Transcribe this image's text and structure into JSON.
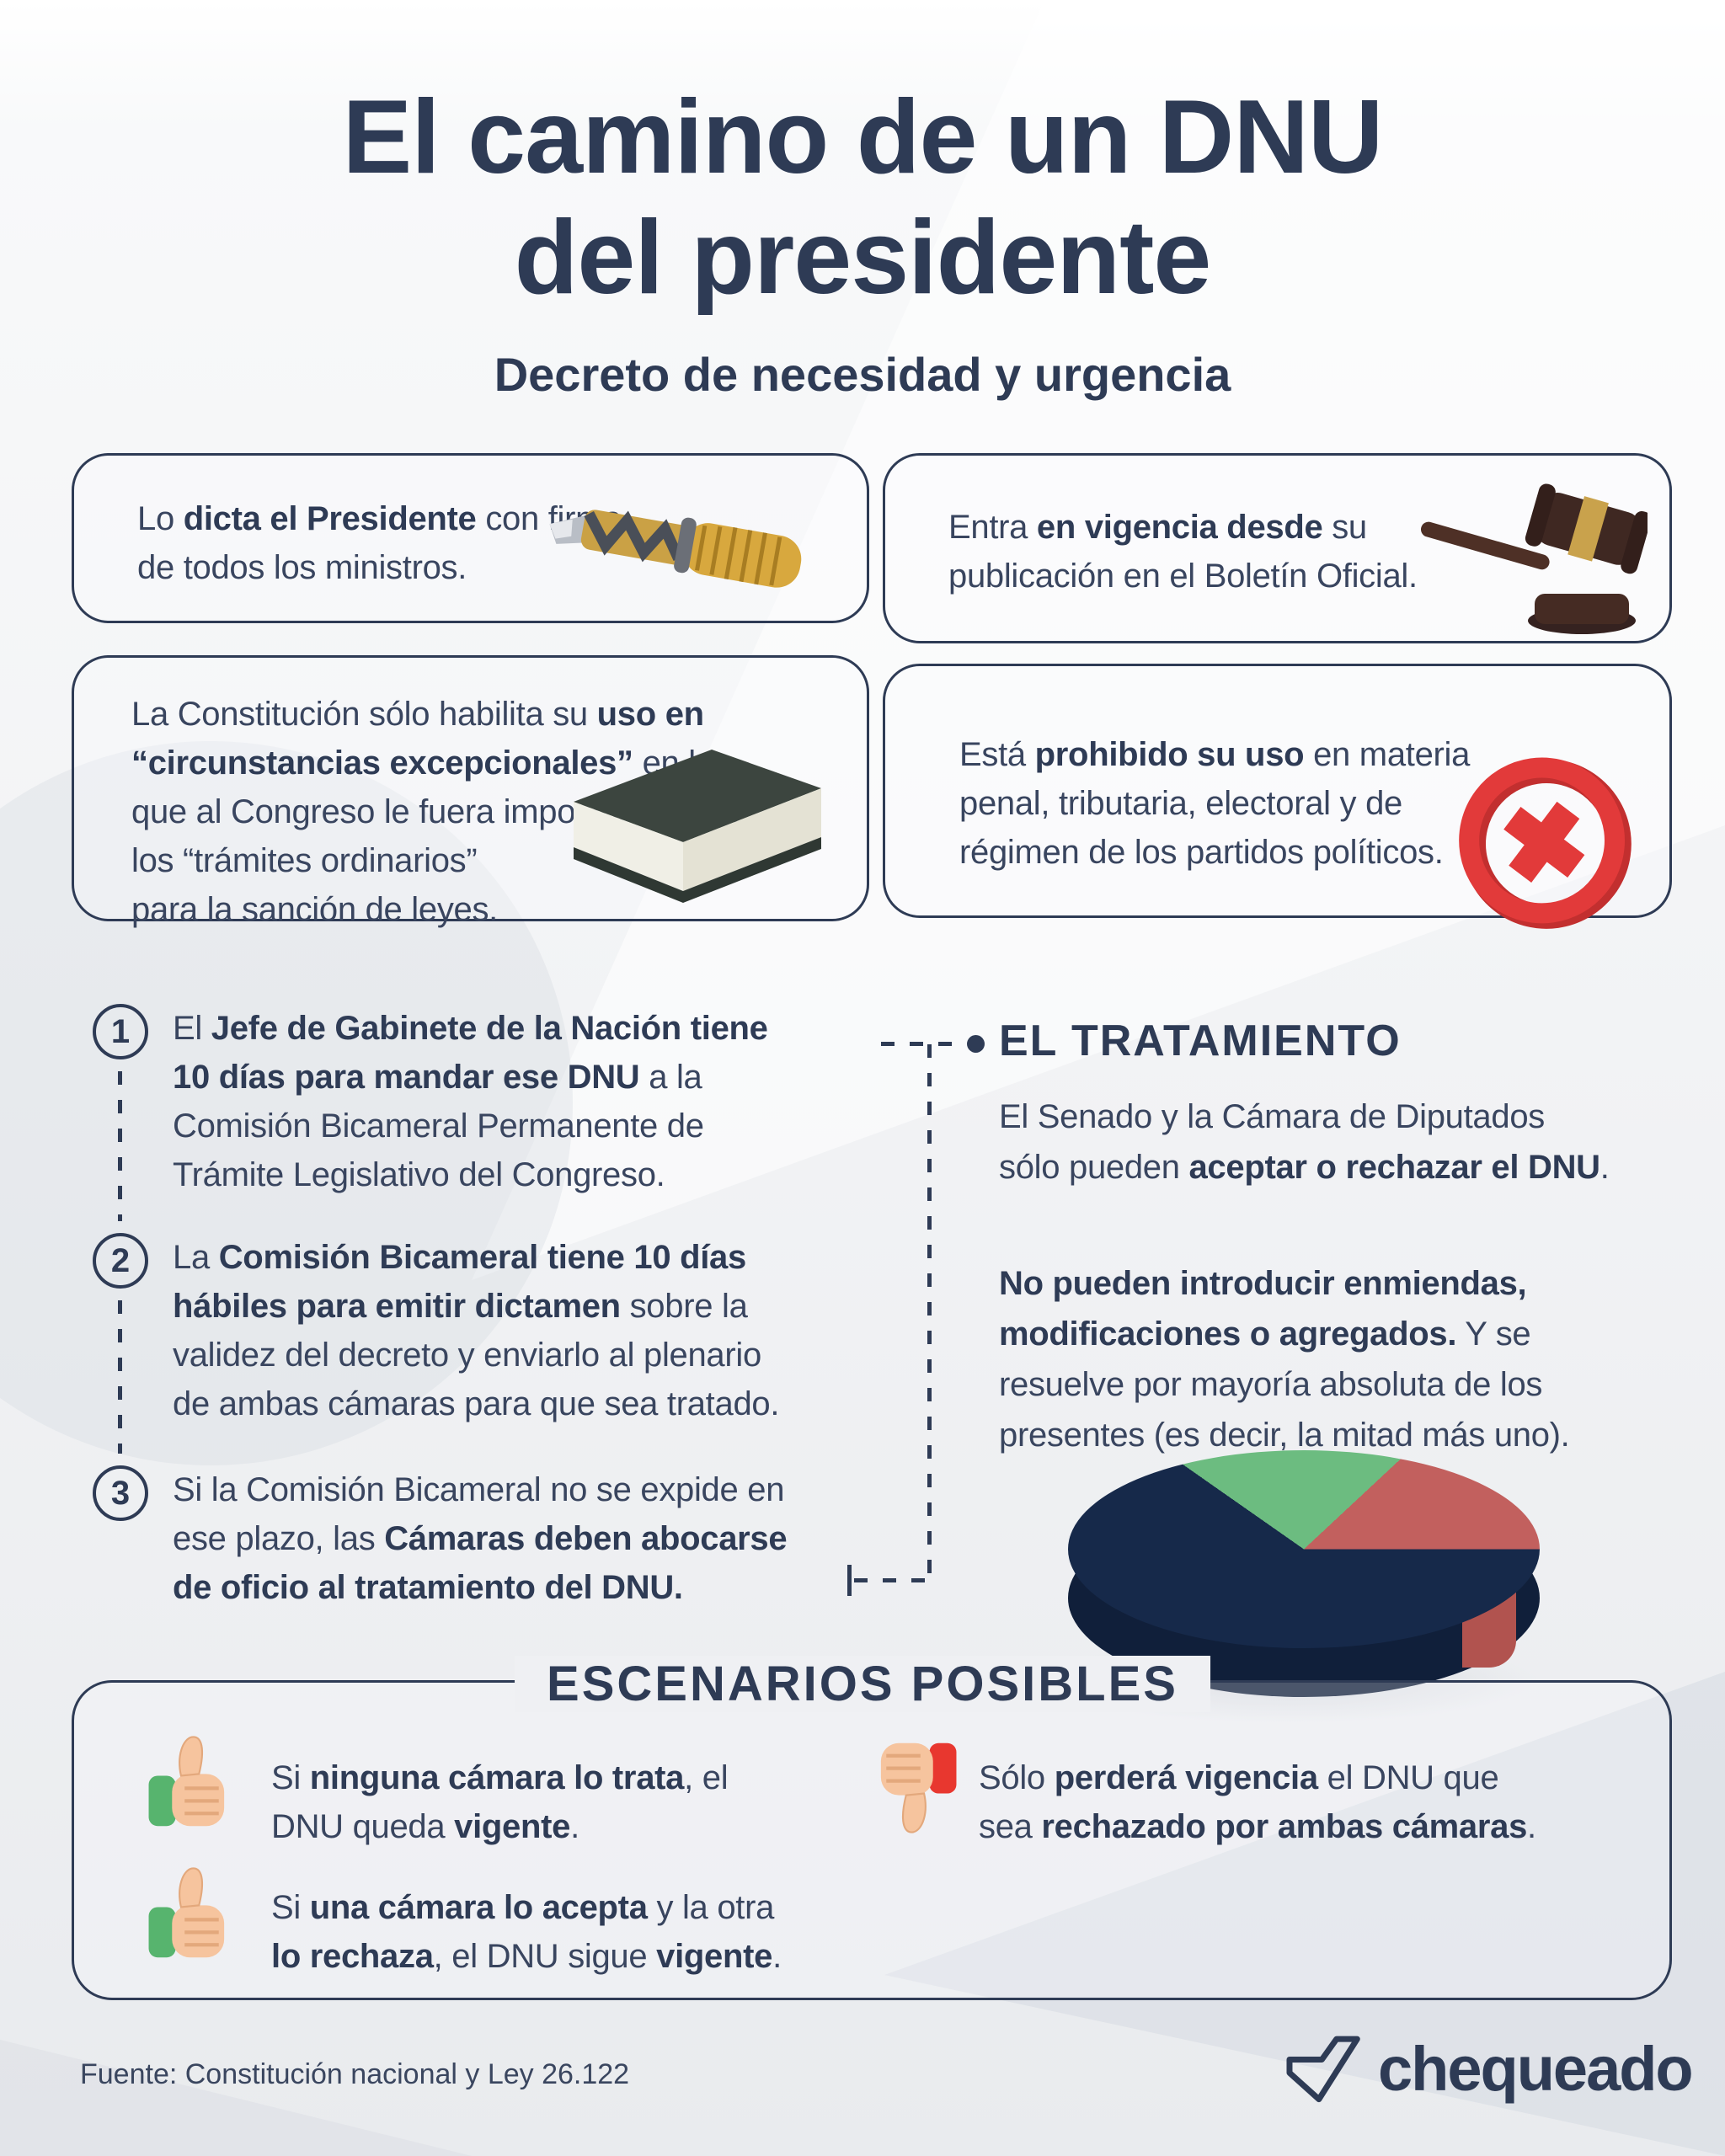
{
  "title": {
    "line1": "El camino de un DNU",
    "line2": "del presidente"
  },
  "subtitle": "Decreto de necesidad y urgencia",
  "colors": {
    "navy": "#2e3b55",
    "body_text": "#39455f",
    "red": "#e23a3a",
    "green_thumb": "#57b46e",
    "red_thumb": "#e8372f",
    "skin": "#f6c49e",
    "pie_navy": "#16294a",
    "pie_green": "#6cbc80",
    "pie_red": "#c2605e",
    "gold": "#caa145",
    "gavel_brown": "#452b23",
    "background": "#f2f3f5"
  },
  "info_boxes": [
    {
      "icon": "pen-image",
      "segments": [
        {
          "t": "Lo "
        },
        {
          "t": "dicta el Presidente",
          "b": true
        },
        {
          "t": " con firma\nde todos los ministros."
        }
      ]
    },
    {
      "icon": "gavel-image",
      "segments": [
        {
          "t": "Entra "
        },
        {
          "t": "en vigencia desde",
          "b": true
        },
        {
          "t": " su\npublicación en el Boletín Oficial."
        }
      ]
    },
    {
      "icon": "book-image",
      "segments": [
        {
          "t": "La Constitución sólo habilita su "
        },
        {
          "t": "uso en\n“circunstancias excepcionales”",
          "b": true
        },
        {
          "t": " en las\nque al Congreso le fuera imposible seguir\nlos “trámites ordinarios”\npara la sanción de leyes."
        }
      ]
    },
    {
      "icon": "prohibited-icon",
      "segments": [
        {
          "t": "Está "
        },
        {
          "t": "prohibido su uso",
          "b": true
        },
        {
          "t": " en materia\npenal, tributaria, electoral y de\nrégimen de los partidos políticos."
        }
      ]
    }
  ],
  "steps": [
    {
      "number": "1",
      "segments": [
        {
          "t": "El "
        },
        {
          "t": "Jefe de Gabinete de la Nación tiene\n10 días para mandar ese DNU",
          "b": true
        },
        {
          "t": " a la\nComisión Bicameral Permanente de\nTrámite Legislativo del Congreso."
        }
      ]
    },
    {
      "number": "2",
      "segments": [
        {
          "t": "La "
        },
        {
          "t": "Comisión Bicameral tiene 10 días\nhábiles para emitir dictamen",
          "b": true
        },
        {
          "t": " sobre la\nvalidez del decreto y enviarlo al plenario\nde ambas cámaras para que sea tratado."
        }
      ]
    },
    {
      "number": "3",
      "segments": [
        {
          "t": "Si la Comisión Bicameral no se expide en\nese plazo, las "
        },
        {
          "t": "Cámaras deben abocarse\nde oficio al tratamiento del DNU.",
          "b": true
        }
      ]
    }
  ],
  "tratamiento": {
    "heading": "EL TRATAMIENTO",
    "paragraphs": [
      {
        "segments": [
          {
            "t": "El Senado y la Cámara de Diputados\nsólo pueden "
          },
          {
            "t": "aceptar o rechazar el DNU",
            "b": true
          },
          {
            "t": "."
          }
        ]
      },
      {
        "segments": [
          {
            "t": "No pueden introducir enmiendas,\nmodificaciones o agregados.",
            "b": true
          },
          {
            "t": " Y se\nresuelve por mayoría absoluta de los\npresentes (es decir, la mitad más uno)."
          }
        ]
      }
    ]
  },
  "pie": {
    "type": "decorative",
    "slices": [
      {
        "label": "navy",
        "approx_percent": 72,
        "color": "#16294a"
      },
      {
        "label": "green",
        "approx_percent": 19,
        "color": "#6cbc80"
      },
      {
        "label": "red",
        "approx_percent": 9,
        "color": "#c2605e"
      }
    ]
  },
  "escenarios": {
    "heading": "ESCENARIOS POSIBLES",
    "items": [
      {
        "icon": "thumbs-up-icon",
        "segments": [
          {
            "t": "Si "
          },
          {
            "t": "ninguna cámara lo trata",
            "b": true
          },
          {
            "t": ", el\nDNU queda "
          },
          {
            "t": "vigente",
            "b": true
          },
          {
            "t": "."
          }
        ]
      },
      {
        "icon": "thumbs-up-icon",
        "segments": [
          {
            "t": "Si "
          },
          {
            "t": "una cámara lo acepta",
            "b": true
          },
          {
            "t": " y la otra\n"
          },
          {
            "t": "lo rechaza",
            "b": true
          },
          {
            "t": ", el DNU sigue "
          },
          {
            "t": "vigente",
            "b": true
          },
          {
            "t": "."
          }
        ]
      },
      {
        "icon": "thumbs-down-icon",
        "segments": [
          {
            "t": "Sólo "
          },
          {
            "t": "perderá vigencia",
            "b": true
          },
          {
            "t": " el DNU que\nsea "
          },
          {
            "t": "rechazado por ambas cámaras",
            "b": true
          },
          {
            "t": "."
          }
        ]
      }
    ]
  },
  "footer": {
    "source": "Fuente: Constitución nacional y Ley 26.122",
    "brand": "chequeado"
  }
}
